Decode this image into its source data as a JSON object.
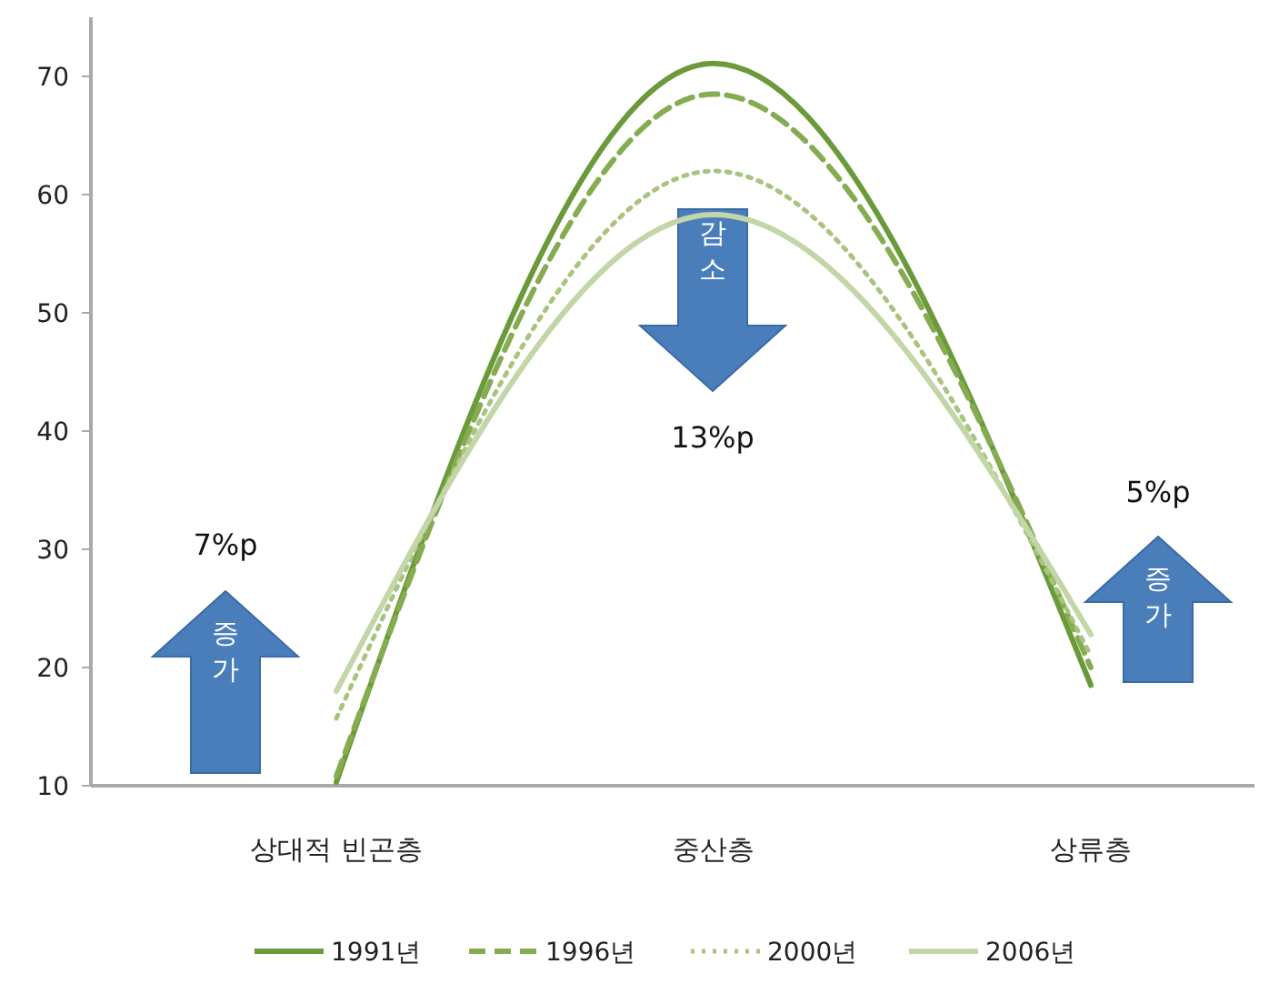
{
  "chart_data": {
    "type": "line",
    "categories": [
      "상대적 빈곤층",
      "중산층",
      "상류층"
    ],
    "series": [
      {
        "name": "1991년",
        "color": "#6a9a3a",
        "line_style": "solid",
        "values": [
          10.3,
          71.1,
          18.5
        ]
      },
      {
        "name": "1996년",
        "color": "#86ac52",
        "line_style": "dashed",
        "values": [
          10.8,
          68.5,
          20
        ]
      },
      {
        "name": "2000년",
        "color": "#a9c47e",
        "line_style": "dotted",
        "values": [
          15.7,
          62,
          21
        ]
      },
      {
        "name": "2006년",
        "color": "#c2d6a8",
        "line_style": "solid",
        "values": [
          18,
          58.3,
          22.8
        ]
      }
    ],
    "ylim": [
      10,
      75
    ],
    "yticks": [
      10,
      20,
      30,
      40,
      50,
      60,
      70
    ],
    "grid": false,
    "legend": "bottom",
    "marker": "none",
    "annotations": [
      "7%p",
      "증가",
      "13%p",
      "감소",
      "5%p",
      "증가"
    ]
  }
}
